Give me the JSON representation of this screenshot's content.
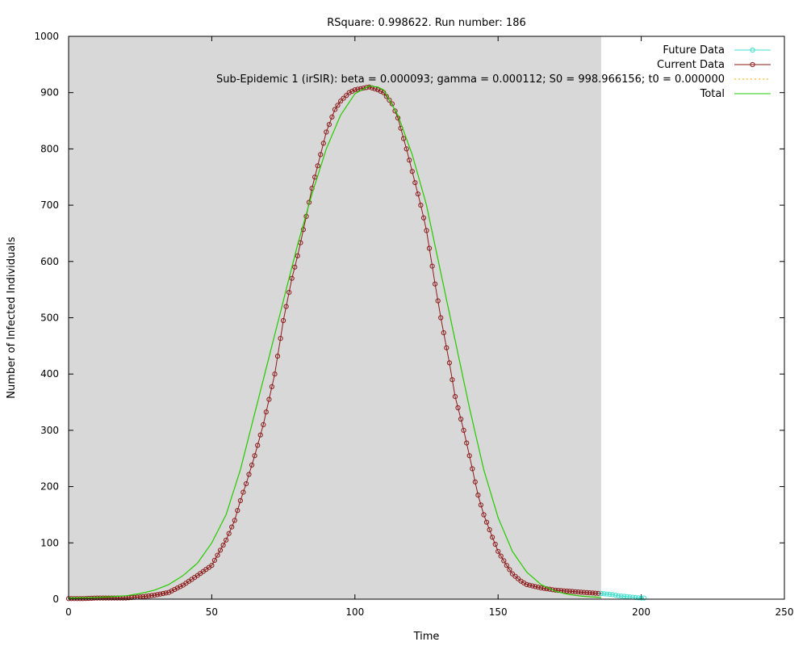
{
  "chart_data": {
    "type": "line",
    "title": "RSquare: 0.998622. Run number: 186",
    "xlabel": "Time",
    "ylabel": "Number of Infected Individuals",
    "xlim": [
      0,
      250
    ],
    "ylim": [
      0,
      1000
    ],
    "x_ticks": [
      0,
      50,
      100,
      150,
      200,
      250
    ],
    "y_ticks": [
      0,
      100,
      200,
      300,
      400,
      500,
      600,
      700,
      800,
      900,
      1000
    ],
    "grid": false,
    "shaded_region": {
      "x_start": 0,
      "x_end": 186,
      "color": "#d8d8d8"
    },
    "legend": {
      "position": "top-right",
      "entries": [
        {
          "label": "Future Data",
          "color": "#40e0d0",
          "style": "line-circle"
        },
        {
          "label": "Current Data",
          "color": "#8b1a1a",
          "style": "line-circle"
        },
        {
          "label": "Sub-Epidemic 1 (irSIR): beta = 0.000093; gamma = 0.000112; S0 = 998.966156; t0 = 0.000000",
          "color": "#ffa500",
          "style": "dotted"
        },
        {
          "label": "Total",
          "color": "#22cc00",
          "style": "line"
        }
      ]
    },
    "series": [
      {
        "name": "Current Data",
        "color": "#8b1a1a",
        "x": [
          0,
          5,
          10,
          15,
          20,
          25,
          30,
          35,
          40,
          45,
          50,
          55,
          58,
          60,
          62,
          65,
          68,
          70,
          72,
          75,
          78,
          80,
          83,
          85,
          88,
          90,
          93,
          95,
          98,
          100,
          103,
          105,
          108,
          110,
          113,
          115,
          118,
          120,
          123,
          125,
          128,
          130,
          133,
          135,
          138,
          140,
          143,
          145,
          148,
          150,
          153,
          155,
          158,
          160,
          165,
          170,
          175,
          180,
          186
        ],
        "y": [
          1,
          1,
          2,
          2,
          2,
          4,
          7,
          12,
          25,
          42,
          60,
          105,
          140,
          175,
          205,
          255,
          310,
          355,
          400,
          495,
          570,
          610,
          680,
          730,
          790,
          830,
          870,
          885,
          900,
          905,
          908,
          910,
          905,
          900,
          880,
          855,
          800,
          760,
          700,
          655,
          560,
          500,
          420,
          360,
          300,
          255,
          185,
          150,
          110,
          85,
          60,
          45,
          32,
          26,
          20,
          16,
          14,
          12,
          10
        ]
      },
      {
        "name": "Future Data",
        "color": "#40e0d0",
        "x": [
          186,
          188,
          190,
          192,
          194,
          196,
          198,
          200,
          201
        ],
        "y": [
          10,
          9,
          8,
          6,
          5,
          4,
          3,
          2,
          2
        ]
      },
      {
        "name": "Total",
        "color": "#22cc00",
        "x": [
          0,
          10,
          20,
          25,
          30,
          35,
          40,
          45,
          50,
          55,
          60,
          65,
          70,
          75,
          80,
          85,
          90,
          95,
          100,
          105,
          108,
          110,
          115,
          120,
          125,
          130,
          135,
          140,
          145,
          150,
          155,
          160,
          165,
          170,
          175,
          180,
          186
        ],
        "y": [
          2,
          3,
          6,
          10,
          16,
          26,
          42,
          64,
          100,
          150,
          230,
          330,
          430,
          530,
          630,
          720,
          800,
          860,
          898,
          912,
          910,
          905,
          860,
          790,
          700,
          580,
          460,
          340,
          230,
          145,
          85,
          48,
          26,
          14,
          8,
          5,
          3
        ]
      },
      {
        "name": "Sub-Epidemic 1 (irSIR)",
        "color": "#ffa500",
        "x": [
          0,
          10,
          20,
          25,
          30,
          35,
          40,
          45,
          50,
          55,
          60,
          65,
          70,
          75,
          80,
          85,
          90,
          95,
          100,
          105,
          108,
          110,
          115,
          120,
          125,
          130,
          135,
          140,
          145,
          150,
          155,
          160,
          165,
          170,
          175,
          180,
          186
        ],
        "y": [
          2,
          3,
          6,
          10,
          16,
          26,
          42,
          64,
          100,
          150,
          230,
          330,
          430,
          530,
          630,
          720,
          800,
          860,
          898,
          912,
          910,
          905,
          860,
          790,
          700,
          580,
          460,
          340,
          230,
          145,
          85,
          48,
          26,
          14,
          8,
          5,
          3
        ]
      }
    ]
  }
}
